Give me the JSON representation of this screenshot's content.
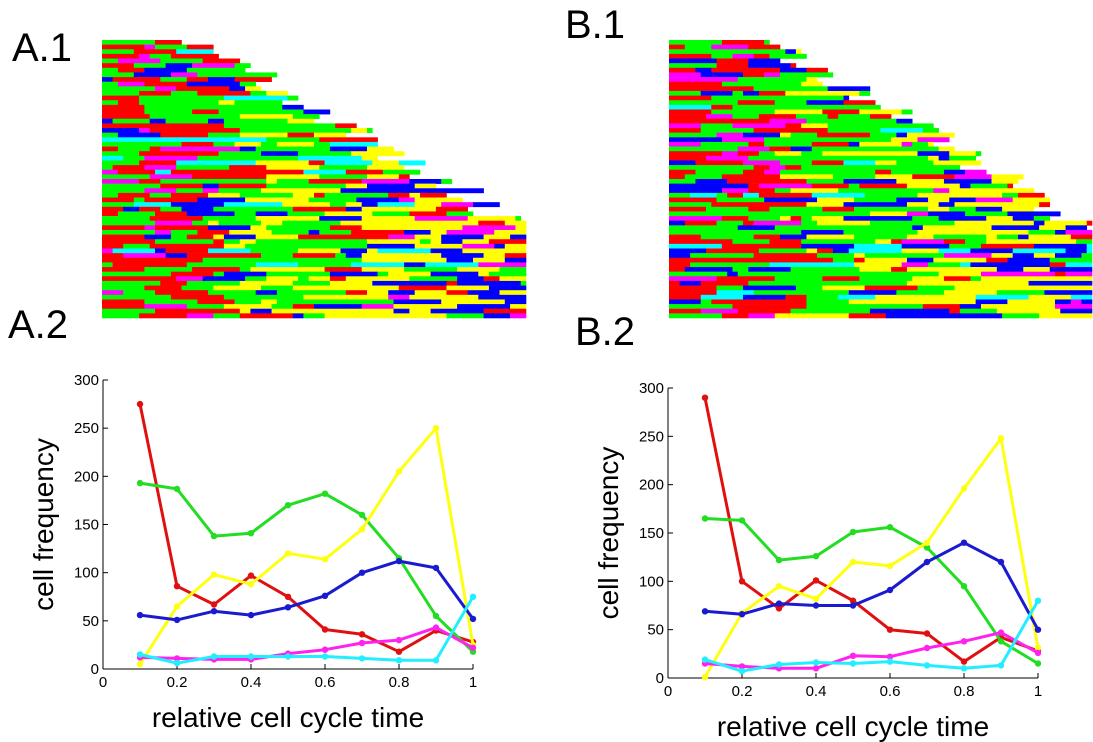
{
  "panels": {
    "a1": "A.1",
    "b1": "B.1",
    "a2": "A.2",
    "b2": "B.2"
  },
  "colors": {
    "red": "#ff0000",
    "green": "#00ff00",
    "blue": "#0000ff",
    "yellow": "#ffff00",
    "magenta": "#ff00ff",
    "cyan": "#00ffff",
    "line_red": "#e01010",
    "line_green": "#22dd22",
    "line_blue": "#1a1ad0",
    "line_yellow": "#ffff10",
    "line_magenta": "#ff22ee",
    "line_cyan": "#22eeff"
  },
  "chart_data": [
    {
      "type": "heatmap",
      "panel": "A.1",
      "description_colors": [
        "red",
        "green",
        "yellow",
        "blue",
        "magenta",
        "cyan"
      ]
    },
    {
      "type": "heatmap",
      "panel": "B.1",
      "description_colors": [
        "red",
        "green",
        "yellow",
        "blue",
        "magenta",
        "cyan"
      ]
    },
    {
      "type": "line",
      "panel": "A.2",
      "title": "",
      "xlabel": "relative cell cycle time",
      "ylabel": "cell  frequency",
      "xlim": [
        0,
        1
      ],
      "ylim": [
        0,
        300
      ],
      "xticks": [
        "0",
        "0.2",
        "0.4",
        "0.6",
        "0.8",
        "1"
      ],
      "yticks": [
        "0",
        "50",
        "100",
        "150",
        "200",
        "250",
        "300"
      ],
      "x": [
        0.1,
        0.2,
        0.3,
        0.4,
        0.5,
        0.6,
        0.7,
        0.8,
        0.9,
        1.0
      ],
      "series": [
        {
          "color": "red",
          "values": [
            275,
            86,
            67,
            97,
            75,
            41,
            36,
            18,
            40,
            28
          ]
        },
        {
          "color": "green",
          "values": [
            193,
            187,
            138,
            141,
            170,
            182,
            160,
            115,
            55,
            18
          ]
        },
        {
          "color": "yellow",
          "values": [
            5,
            65,
            98,
            88,
            120,
            114,
            145,
            205,
            250,
            25
          ]
        },
        {
          "color": "blue",
          "values": [
            56,
            51,
            60,
            56,
            64,
            76,
            100,
            112,
            105,
            52
          ]
        },
        {
          "color": "magenta",
          "values": [
            12,
            11,
            10,
            10,
            16,
            20,
            27,
            30,
            43,
            22
          ]
        },
        {
          "color": "cyan",
          "values": [
            15,
            6,
            13,
            13,
            13,
            13,
            11,
            9,
            9,
            75
          ]
        }
      ]
    },
    {
      "type": "line",
      "panel": "B.2",
      "title": "",
      "xlabel": "relative cell cycle time",
      "ylabel": "cell  frequency",
      "xlim": [
        0,
        1
      ],
      "ylim": [
        0,
        300
      ],
      "xticks": [
        "0",
        "0.2",
        "0.4",
        "0.6",
        "0.8",
        "1"
      ],
      "yticks": [
        "0",
        "50",
        "100",
        "150",
        "200",
        "250",
        "300"
      ],
      "x": [
        0.1,
        0.2,
        0.3,
        0.4,
        0.5,
        0.6,
        0.7,
        0.8,
        0.9,
        1.0
      ],
      "series": [
        {
          "color": "red",
          "values": [
            290,
            100,
            72,
            101,
            80,
            50,
            46,
            17,
            42,
            28
          ]
        },
        {
          "color": "green",
          "values": [
            165,
            163,
            122,
            126,
            151,
            156,
            135,
            95,
            38,
            15
          ]
        },
        {
          "color": "yellow",
          "values": [
            1,
            67,
            95,
            82,
            120,
            116,
            140,
            196,
            248,
            31
          ]
        },
        {
          "color": "blue",
          "values": [
            69,
            66,
            77,
            75,
            75,
            91,
            120,
            140,
            120,
            50
          ]
        },
        {
          "color": "magenta",
          "values": [
            15,
            12,
            10,
            10,
            23,
            22,
            31,
            38,
            47,
            26
          ]
        },
        {
          "color": "cyan",
          "values": [
            19,
            7,
            14,
            16,
            15,
            17,
            13,
            10,
            13,
            80
          ]
        }
      ]
    }
  ]
}
